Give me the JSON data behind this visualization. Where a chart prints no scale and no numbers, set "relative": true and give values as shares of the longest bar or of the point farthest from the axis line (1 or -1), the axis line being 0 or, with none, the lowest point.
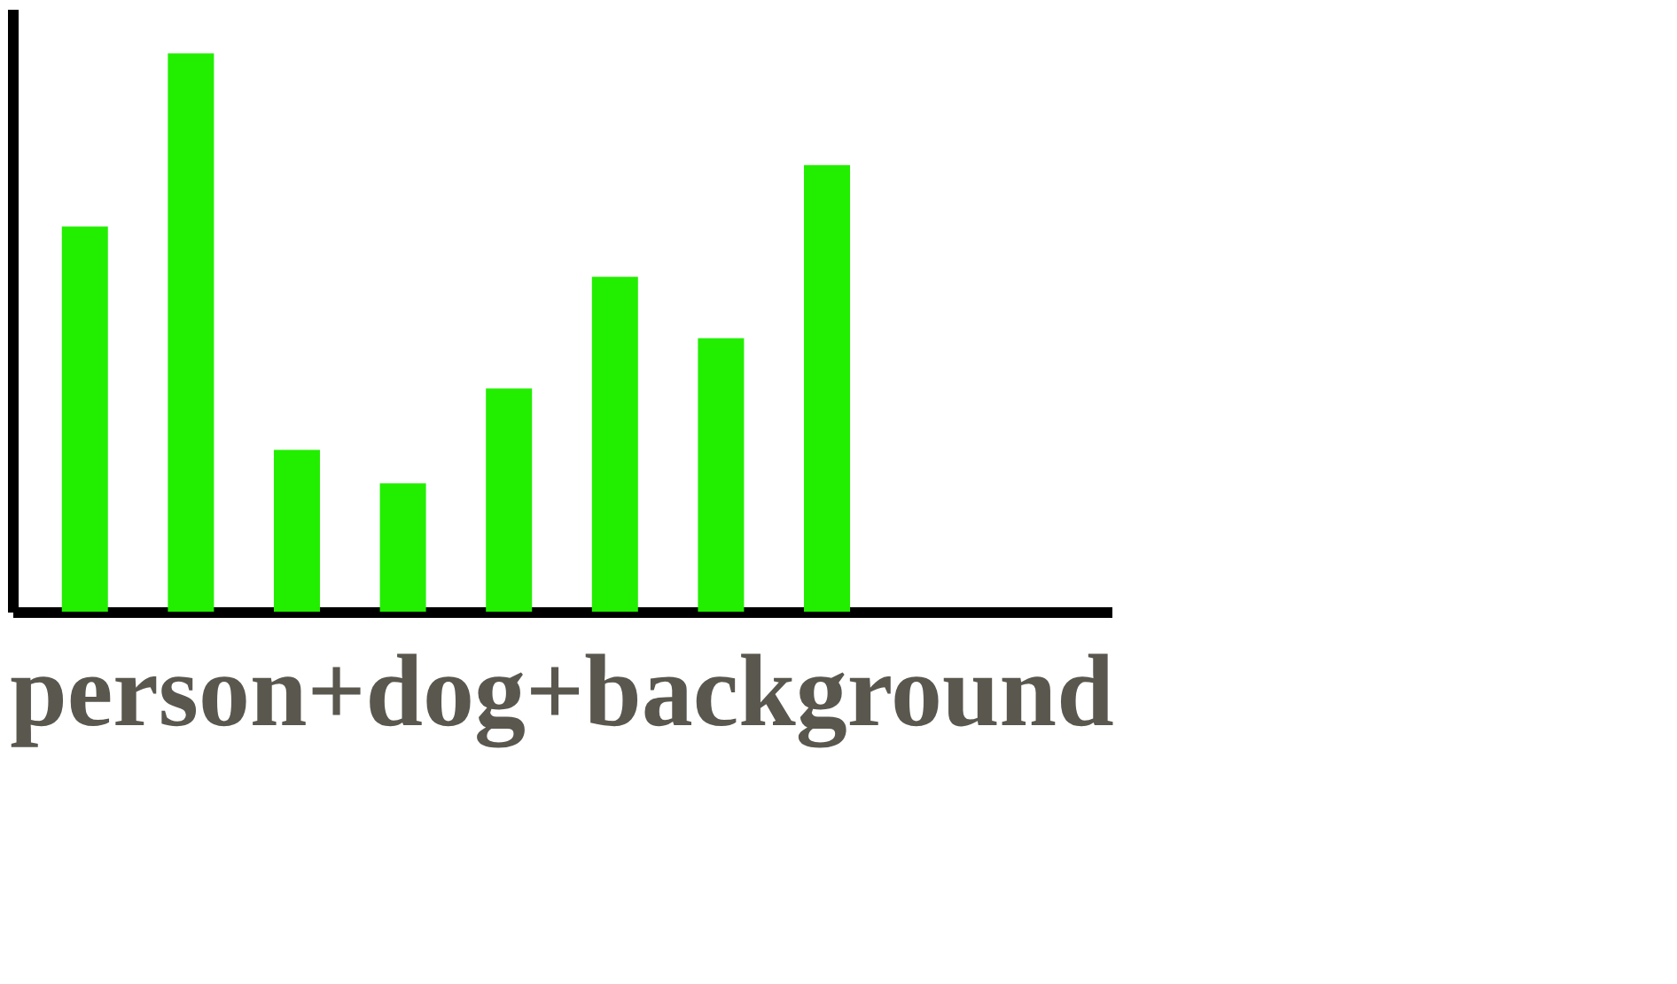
{
  "chart_data": {
    "type": "bar",
    "title": "person+dog+background",
    "categories": [
      null,
      null,
      null,
      null,
      null,
      null,
      null,
      null
    ],
    "values": [
      0.69,
      1,
      0.29,
      0.23,
      0.4,
      0.6,
      0.49,
      0.8
    ],
    "color": "#22ee00",
    "relative": true,
    "tick_labels": false,
    "grid": false
  }
}
